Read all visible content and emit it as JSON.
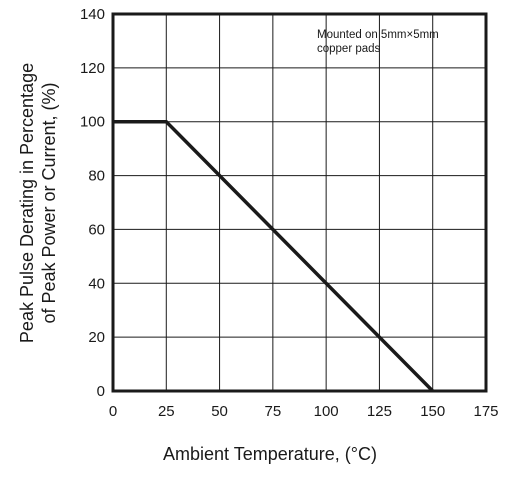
{
  "chart_data": {
    "type": "line",
    "title": "",
    "xlabel": "Ambient Temperature, (°C)",
    "ylabel_lines": [
      "Peak Pulse Derating in Percentage",
      "of Peak Power or Current, (%)"
    ],
    "xlim": [
      0,
      175
    ],
    "ylim": [
      0,
      140
    ],
    "xticks": [
      0,
      25,
      50,
      75,
      100,
      125,
      150,
      175
    ],
    "yticks": [
      0,
      20,
      40,
      60,
      80,
      100,
      120,
      140
    ],
    "grid": true,
    "annotation_lines": [
      "Mounted on 5mm×5mm",
      "copper pads"
    ],
    "series": [
      {
        "x": [
          0,
          25,
          150
        ],
        "y": [
          100,
          100,
          0
        ]
      }
    ],
    "line_color": "#1a1a1a"
  }
}
